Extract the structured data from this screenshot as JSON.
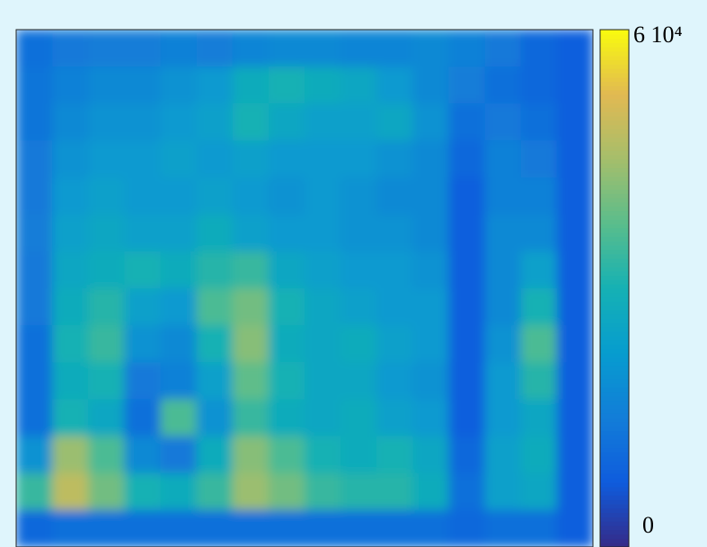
{
  "chart_data": {
    "type": "heatmap",
    "values": [
      [
        12000,
        14000,
        15000,
        15000,
        16000,
        15000,
        17000,
        18000,
        18000,
        17000,
        17000,
        18000,
        16000,
        14000,
        10000,
        8000
      ],
      [
        13000,
        16000,
        18000,
        18000,
        20000,
        22000,
        28000,
        30000,
        28000,
        26000,
        22000,
        18000,
        15000,
        12000,
        10000,
        8000
      ],
      [
        13000,
        18000,
        20000,
        20000,
        22000,
        24000,
        30000,
        26000,
        24000,
        24000,
        26000,
        20000,
        12000,
        14000,
        12000,
        8000
      ],
      [
        14000,
        20000,
        22000,
        22000,
        24000,
        22000,
        24000,
        22000,
        22000,
        22000,
        20000,
        18000,
        10000,
        16000,
        14000,
        8000
      ],
      [
        14000,
        22000,
        24000,
        22000,
        22000,
        24000,
        22000,
        20000,
        22000,
        20000,
        18000,
        18000,
        8000,
        16000,
        16000,
        8000
      ],
      [
        15000,
        24000,
        26000,
        24000,
        24000,
        28000,
        24000,
        22000,
        22000,
        20000,
        20000,
        18000,
        8000,
        18000,
        18000,
        8000
      ],
      [
        14000,
        26000,
        28000,
        30000,
        28000,
        32000,
        34000,
        26000,
        24000,
        22000,
        22000,
        20000,
        8000,
        18000,
        24000,
        8000
      ],
      [
        14000,
        28000,
        32000,
        24000,
        22000,
        36000,
        40000,
        30000,
        26000,
        24000,
        22000,
        22000,
        8000,
        18000,
        30000,
        8000
      ],
      [
        12000,
        30000,
        34000,
        20000,
        18000,
        30000,
        42000,
        28000,
        26000,
        28000,
        24000,
        22000,
        8000,
        20000,
        36000,
        8000
      ],
      [
        12000,
        28000,
        30000,
        14000,
        16000,
        24000,
        38000,
        30000,
        26000,
        26000,
        22000,
        20000,
        8000,
        22000,
        32000,
        8000
      ],
      [
        12000,
        30000,
        26000,
        12000,
        36000,
        20000,
        34000,
        28000,
        26000,
        28000,
        24000,
        22000,
        8000,
        22000,
        26000,
        8000
      ],
      [
        20000,
        44000,
        36000,
        18000,
        14000,
        28000,
        42000,
        36000,
        30000,
        28000,
        30000,
        26000,
        10000,
        24000,
        28000,
        8000
      ],
      [
        34000,
        48000,
        40000,
        30000,
        28000,
        34000,
        44000,
        40000,
        34000,
        32000,
        32000,
        28000,
        12000,
        24000,
        26000,
        8000
      ],
      [
        10000,
        12000,
        12000,
        12000,
        12000,
        12000,
        12000,
        12000,
        12000,
        12000,
        12000,
        12000,
        10000,
        12000,
        12000,
        8000
      ]
    ],
    "zlim": [
      0,
      60000
    ],
    "zticks": [
      0,
      {
        "value": 60000,
        "label": "6 10⁴"
      }
    ]
  }
}
